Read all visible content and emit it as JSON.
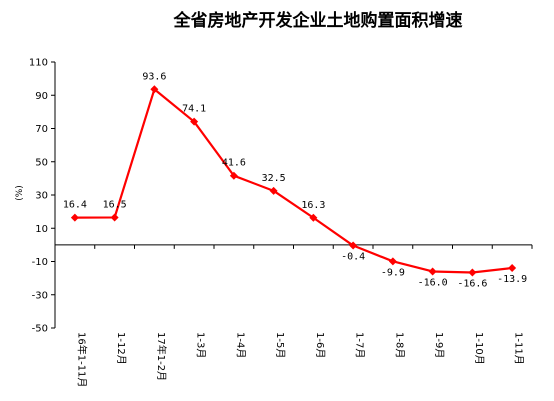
{
  "chart_data": {
    "type": "line",
    "title": "全省房地产开发企业土地购置面积增速",
    "ylabel": "(%)",
    "ylim": [
      -50,
      110
    ],
    "yticks": [
      -50,
      -30,
      -10,
      10,
      30,
      50,
      70,
      90,
      110
    ],
    "categories": [
      "16年1-11月",
      "1-12月",
      "17年1-2月",
      "1-3月",
      "1-4月",
      "1-5月",
      "1-6月",
      "1-7月",
      "1-8月",
      "1-9月",
      "1-10月",
      "1-11月"
    ],
    "series": [
      {
        "values": [
          16.4,
          16.5,
          93.6,
          74.1,
          41.6,
          32.5,
          16.3,
          -0.4,
          -9.9,
          -16.0,
          -16.6,
          -13.9
        ],
        "labels": [
          "16.4",
          "16.5",
          "93.6",
          "74.1",
          "41.6",
          "32.5",
          "16.3",
          "-0.4",
          "-9.9",
          "-16.0",
          "-16.6",
          "-13.9"
        ],
        "color": "#ff0000"
      }
    ],
    "grid": false,
    "legend": "none"
  }
}
